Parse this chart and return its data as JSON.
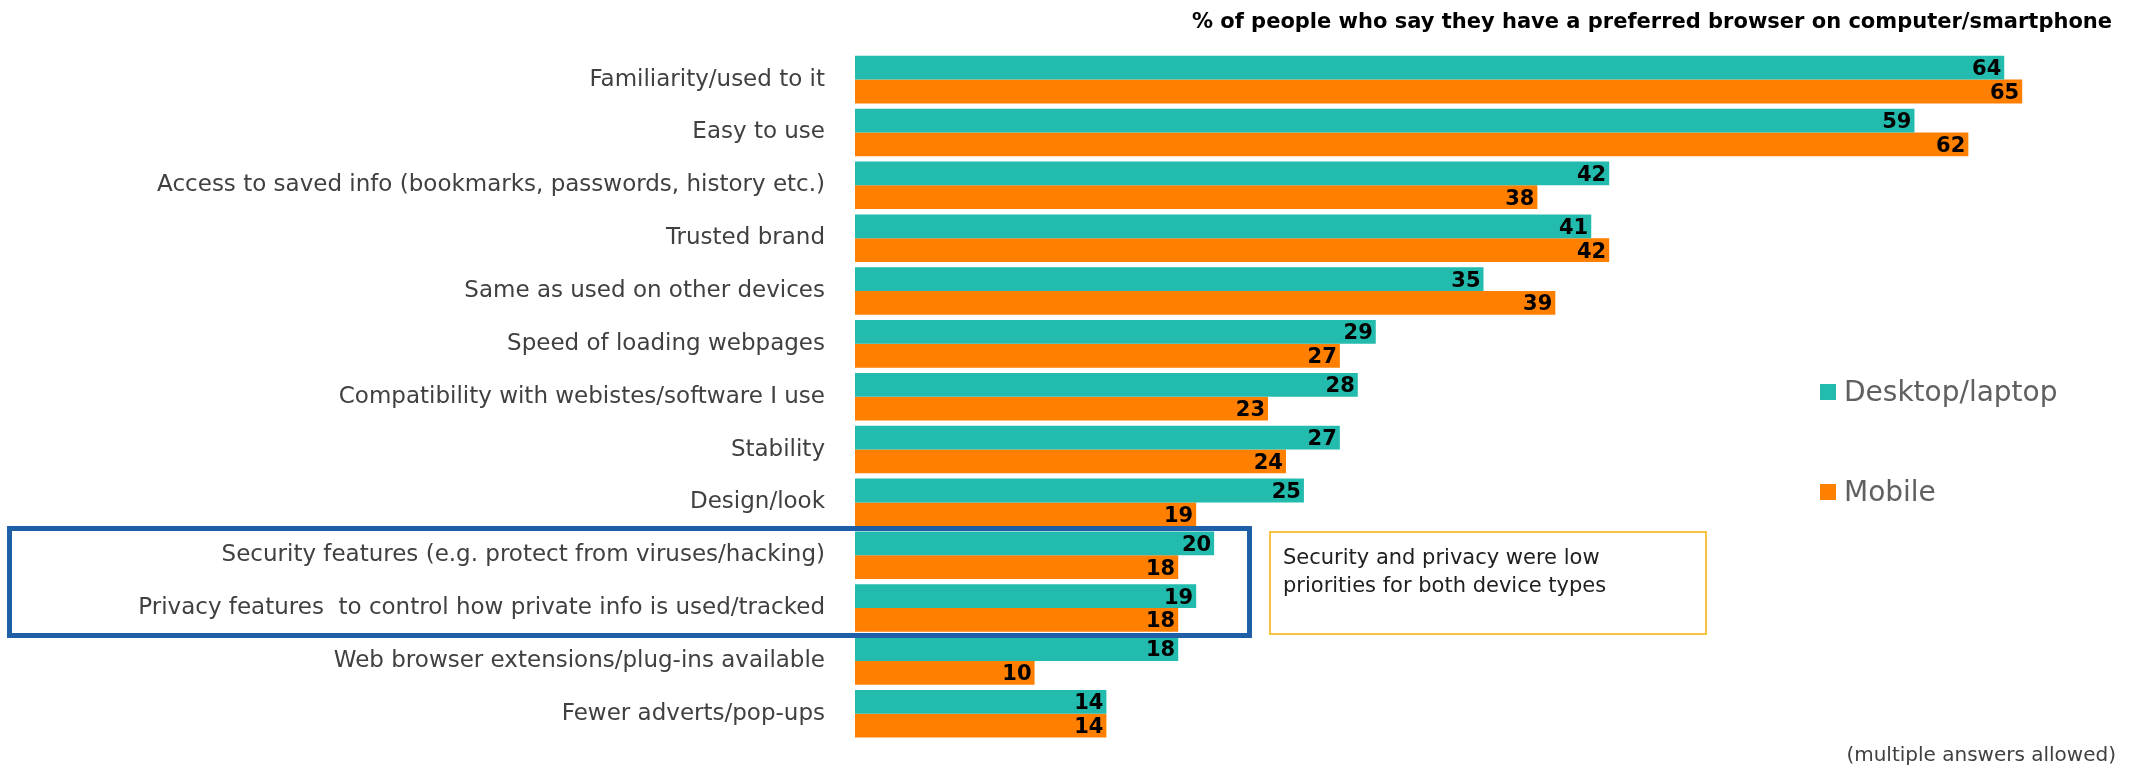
{
  "chart_data": {
    "type": "bar",
    "orientation": "horizontal",
    "title": "% of people who say they have a preferred browser on computer/smartphone",
    "categories": [
      "Familiarity/used to it",
      "Easy to use",
      "Access to saved info (bookmarks, passwords, history etc.)",
      "Trusted brand",
      "Same as used on other devices",
      "Speed of loading webpages",
      "Compatibility with webistes/software I use",
      "Stability",
      "Design/look",
      "Security features (e.g. protect from viruses/hacking)",
      "Privacy features  to control how private info is used/tracked",
      "Web browser extensions/plug-ins available",
      "Fewer adverts/pop-ups"
    ],
    "series": [
      {
        "name": "Desktop/laptop",
        "color": "#22bbad",
        "values": [
          64,
          59,
          42,
          41,
          35,
          29,
          28,
          27,
          25,
          20,
          19,
          18,
          14
        ]
      },
      {
        "name": "Mobile",
        "color": "#ff7f00",
        "values": [
          65,
          62,
          38,
          42,
          39,
          27,
          23,
          24,
          19,
          18,
          18,
          10,
          14
        ]
      }
    ],
    "tick_labels": "y",
    "grid": false,
    "legend": "right",
    "data_labels": true,
    "annotations": [
      "Security and privacy were low priorities for both device types",
      "(multiple answers allowed)"
    ]
  }
}
